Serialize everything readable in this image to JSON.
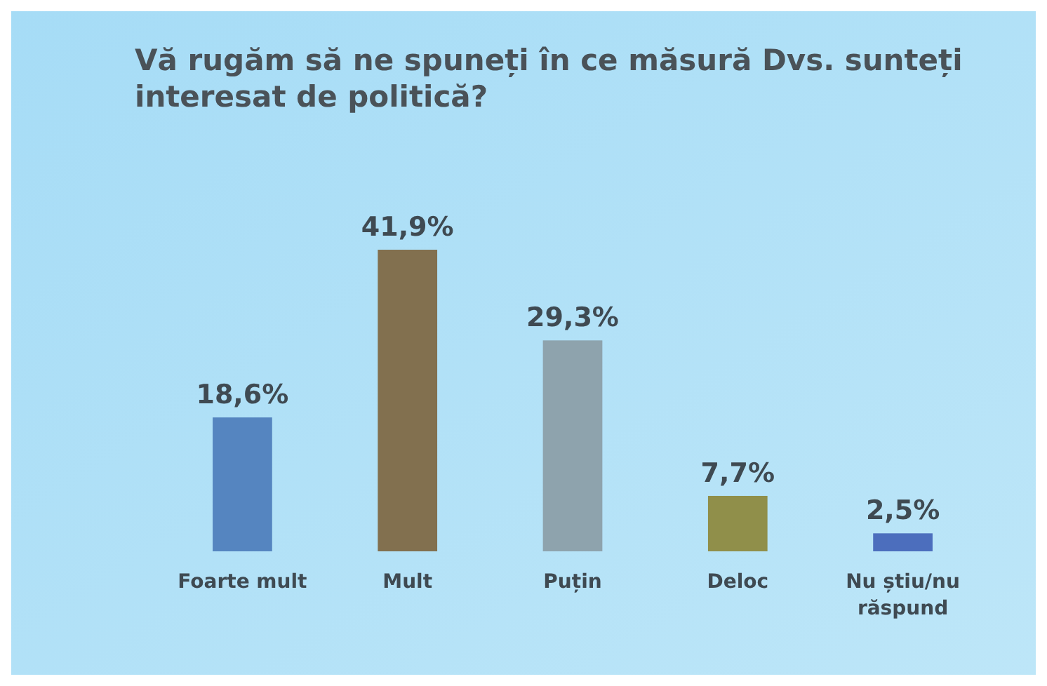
{
  "chart_data": {
    "type": "bar",
    "title": "Vă rugăm să ne spuneți în ce măsură Dvs. sunteți interesat de politică?",
    "categories": [
      "Foarte mult",
      "Mult",
      "Puțin",
      "Deloc",
      "Nu știu/nu răspund"
    ],
    "values": [
      18.6,
      41.9,
      29.3,
      7.7,
      2.5
    ],
    "colors": [
      "#5585c0",
      "#82704f",
      "#8ea3ad",
      "#908f4a",
      "#4c6ebd"
    ],
    "value_labels": [
      "18,6%",
      "41,9%",
      "29,3%",
      "7,7%",
      "2,5%"
    ],
    "grid": false
  }
}
